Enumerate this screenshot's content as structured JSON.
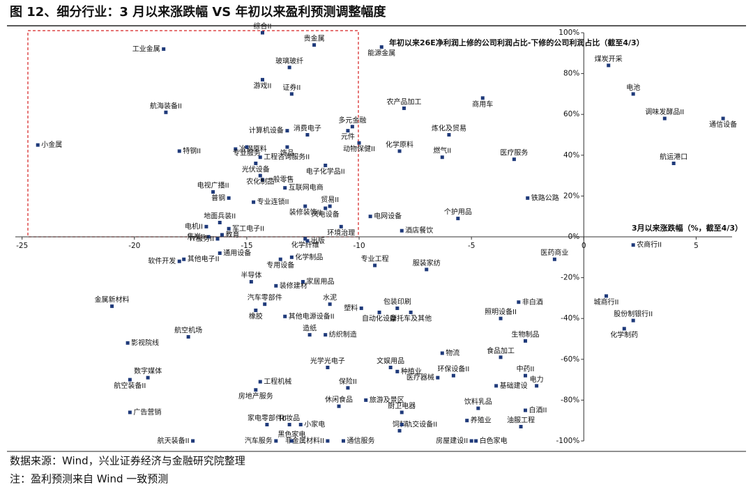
{
  "chart_data": {
    "type": "scatter",
    "title": "图 12、细分行业：3 月以来涨跌幅 VS 年初以来盈利预测调整幅度",
    "y_annotation": "年初以来26E净利润上修的公司利润占比-下修的公司利润占比（截至4/3）",
    "x_annotation": "3月以来涨跌幅（%，截至4/3）",
    "color": "#1f3a7a",
    "xlim": [
      -25.3,
      6.6
    ],
    "ylim": [
      -100,
      100
    ],
    "xticks": [
      -25,
      -20,
      -15,
      -10,
      -5,
      0,
      5
    ],
    "yticks": [
      {
        "value": 100,
        "label": "100%"
      },
      {
        "value": 80,
        "label": "80%"
      },
      {
        "value": 60,
        "label": "60%"
      },
      {
        "value": 40,
        "label": "40%"
      },
      {
        "value": 20,
        "label": "20%"
      },
      {
        "value": 0,
        "label": "0%"
      },
      {
        "value": -20,
        "label": "-20%"
      },
      {
        "value": -40,
        "label": "-40%"
      },
      {
        "value": -60,
        "label": "-60%"
      },
      {
        "value": -80,
        "label": "-80%"
      },
      {
        "value": -100,
        "label": "-100%"
      }
    ],
    "labels": [
      "工业金属",
      "综合II",
      "贵金属",
      "能源金属",
      "玻璃玻纤",
      "游戏II",
      "证券II",
      "航海装备II",
      "计算机设备",
      "消费电子",
      "多元金融",
      "元件",
      "小金属",
      "特钢II",
      "冶钢原料",
      "饰品",
      "动物保健II",
      "专业服务",
      "工程咨询服务II",
      "光伏设备",
      "电子化学品II",
      "一般零售",
      "农化制品",
      "电视广播II",
      "互联网电商",
      "普钢",
      "专业连锁II",
      "贸易II",
      "装修装饰II",
      "风电设备",
      "地面兵装II",
      "电机II",
      "军工电子II",
      "焦炭II",
      "教育",
      "环境治理",
      "电网设备",
      "酒店餐饮",
      "个护用品",
      "铁路公路",
      "农产品加工",
      "商用车",
      "炼化及贸易",
      "化学原料",
      "燃气II",
      "医疗服务",
      "煤炭开采",
      "电池",
      "调味发酵品II",
      "通信设备",
      "航运港口",
      "农商行II",
      "城商行II",
      "股份制银行II",
      "化学制药",
      "医药商业",
      "非白酒",
      "照明设备II",
      "生物制品",
      "食品加工",
      "中药II",
      "电力",
      "基础建设",
      "饮料乳品",
      "白酒II",
      "养殖业",
      "油服工程",
      "白色家电",
      "房屋建设II",
      "物流",
      "环保设备II",
      "医疗器械",
      "种植业",
      "文娱用品",
      "旅游及景区",
      "厨卫电器",
      "饲料",
      "轨交设备II",
      "通信服务",
      "非金属材料II",
      "黑色家电",
      "汽车服务",
      "航天装备II",
      "小家电",
      "化妆品",
      "家电零部件II",
      "休闲食品",
      "保险II",
      "光学光电子",
      "工程机械",
      "房地产服务",
      "造纸",
      "纺织制造",
      "其他电源设备II",
      "汽车零部件",
      "橡胶",
      "水泥",
      "塑料",
      "自动化设备",
      "包装印刷",
      "摩托车及其他",
      "装修建材",
      "家居用品",
      "半导体",
      "专用设备",
      "化学制品",
      "化学纤维",
      "出版",
      "专业工程",
      "服装家纺",
      "IT服务II",
      "其他电子II",
      "通用设备",
      "软件开发",
      "金属新材料",
      "航空机场",
      "影视院线",
      "数字媒体",
      "航空装备II",
      "广告营销"
    ],
    "x": [
      -18.7,
      -14.3,
      -12.0,
      -9.0,
      -13.1,
      -14.3,
      -13.0,
      -18.6,
      -13.2,
      -12.3,
      -10.3,
      -10.5,
      -24.3,
      -18.0,
      -15.5,
      -13.2,
      -10.0,
      -15.0,
      -14.4,
      -14.6,
      -11.5,
      -14.3,
      -14.4,
      -16.5,
      -13.3,
      -15.8,
      -14.7,
      -11.3,
      -12.4,
      -11.5,
      -16.2,
      -16.8,
      -15.8,
      -16.7,
      -16.1,
      -10.8,
      -9.5,
      -8.1,
      -5.6,
      -2.5,
      -8.0,
      -4.5,
      -6.0,
      -8.2,
      -6.3,
      -3.1,
      1.1,
      2.2,
      3.6,
      6.2,
      4.0,
      2.2,
      1.0,
      2.2,
      1.8,
      -1.3,
      -2.9,
      -3.7,
      -2.6,
      -3.7,
      -2.6,
      -2.1,
      -3.9,
      -4.7,
      -2.6,
      -5.2,
      -2.8,
      -4.8,
      -5.0,
      -6.3,
      -5.8,
      -6.5,
      -8.3,
      -8.6,
      -9.7,
      -8.1,
      -8.2,
      -8.1,
      -10.7,
      -11.4,
      -13.0,
      -13.7,
      -17.4,
      -12.6,
      -13.1,
      -14.1,
      -10.9,
      -10.5,
      -11.4,
      -14.4,
      -14.6,
      -12.2,
      -11.5,
      -13.3,
      -14.2,
      -14.6,
      -11.3,
      -9.9,
      -9.1,
      -8.3,
      -7.7,
      -13.7,
      -12.5,
      -14.8,
      -13.5,
      -13.0,
      -12.4,
      -12.3,
      -9.3,
      -7.0,
      -16.3,
      -17.8,
      -16.2,
      -18.0,
      -21.0,
      -17.6,
      -20.3,
      -19.4,
      -20.2,
      -20.2
    ],
    "y": [
      92,
      100,
      94,
      93,
      83,
      77,
      70,
      61,
      52,
      50,
      54,
      52,
      45,
      42,
      43,
      44,
      46,
      44,
      39,
      36,
      35,
      28,
      30,
      22,
      24,
      19,
      17,
      15,
      15,
      14,
      7,
      5,
      4,
      0,
      1,
      5,
      10,
      3,
      9,
      19,
      63,
      68,
      50,
      42,
      39,
      38,
      84,
      70,
      58,
      58,
      36,
      -4,
      -29,
      -41,
      -45,
      -11,
      -32,
      -40,
      -51,
      -59,
      -68,
      -73,
      -73,
      -84,
      -85,
      -90,
      -93,
      -100,
      -100,
      -57,
      -68,
      -69,
      -66,
      -64,
      -80,
      -86,
      -95,
      -92,
      -100,
      -100,
      -100,
      -100,
      -100,
      -92,
      -92,
      -92,
      -83,
      -74,
      -64,
      -71,
      -75,
      -48,
      -48,
      -39,
      -33,
      -36,
      -33,
      -35,
      -37,
      -35,
      -37,
      -24,
      -22,
      -22,
      -11,
      -10,
      -1,
      -2,
      -14,
      -16,
      -1,
      -11,
      -8,
      -12,
      -34,
      -49,
      -52,
      -69,
      -70,
      -86
    ]
  },
  "notes": [
    "数据来源：Wind，兴业证券经济与金融研究院整理",
    "注：盈利预测来自 Wind 一致预测"
  ]
}
